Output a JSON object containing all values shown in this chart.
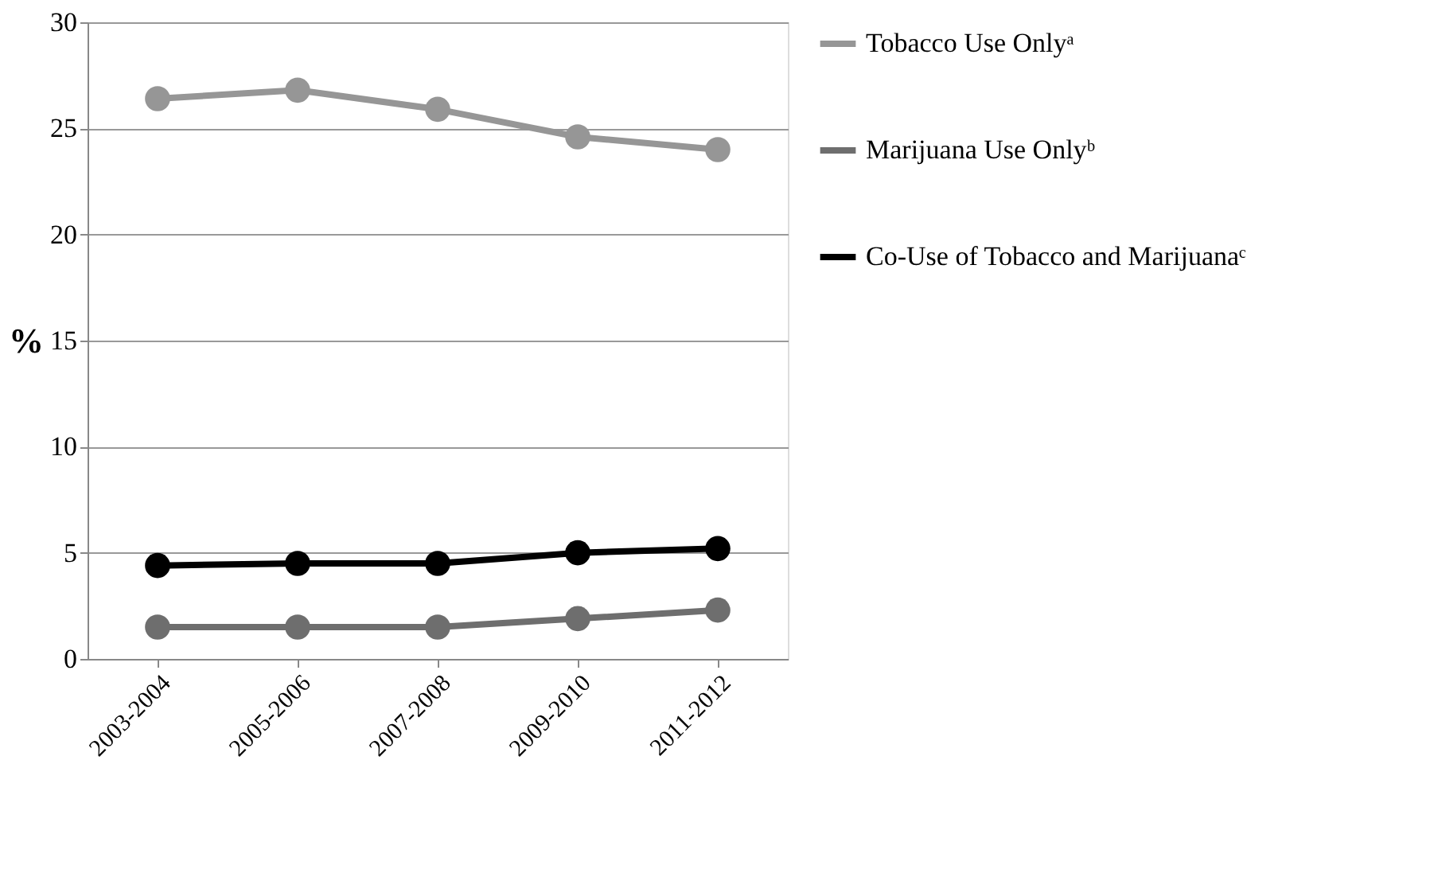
{
  "chart_data": {
    "type": "line",
    "ylabel": "%",
    "categories": [
      "2003-2004",
      "2005-2006",
      "2007-2008",
      "2009-2010",
      "2011-2012"
    ],
    "series": [
      {
        "name": "Tobacco Use Onlyᵃ",
        "color": "#969696",
        "values": [
          26.4,
          26.8,
          25.9,
          24.6,
          24.0
        ]
      },
      {
        "name": "Marijuana Use Onlyᵇ",
        "color": "#6e6e6e",
        "values": [
          1.5,
          1.5,
          1.5,
          1.9,
          2.3
        ]
      },
      {
        "name": "Co-Use of Tobacco and Marijuanaᶜ",
        "color": "#000000",
        "values": [
          4.4,
          4.5,
          4.5,
          5.0,
          5.2
        ]
      }
    ],
    "ylim": [
      0,
      30
    ],
    "yticks": [
      0,
      5,
      10,
      15,
      20,
      25,
      30
    ],
    "grid": "y",
    "legend": "right",
    "marker": "circle",
    "line_style": "solid"
  }
}
